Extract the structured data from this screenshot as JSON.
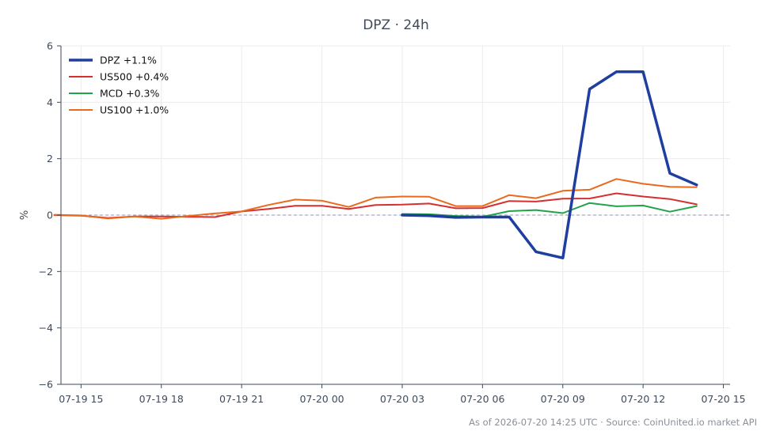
{
  "chart_data": {
    "type": "line",
    "title": "DPZ · 24h",
    "xlabel": "",
    "ylabel": "%",
    "ylim": [
      -6,
      6
    ],
    "xlim": [
      "2026-07-19 14:15",
      "2026-07-20 15:15"
    ],
    "yticks": [
      -6,
      -4,
      -2,
      0,
      2,
      4,
      6
    ],
    "xticks": [
      "2026-07-19 15:00",
      "2026-07-19 18:00",
      "2026-07-19 21:00",
      "2026-07-20 00:00",
      "2026-07-20 03:00",
      "2026-07-20 06:00",
      "2026-07-20 09:00",
      "2026-07-20 12:00",
      "2026-07-20 15:00"
    ],
    "xtick_labels": [
      "07-19 15",
      "07-19 18",
      "07-19 21",
      "07-20 00",
      "07-20 03",
      "07-20 06",
      "07-20 09",
      "07-20 12",
      "07-20 15"
    ],
    "grid": true,
    "legend_position": "top-left",
    "reference_line": 0,
    "series": [
      {
        "name": "DPZ +1.1%",
        "color": "#1f3fa0",
        "emphasis": true,
        "x": [
          "2026-07-20 03:00",
          "2026-07-20 04:00",
          "2026-07-20 05:00",
          "2026-07-20 06:00",
          "2026-07-20 07:00",
          "2026-07-20 08:00",
          "2026-07-20 09:00",
          "2026-07-20 10:00",
          "2026-07-20 11:00",
          "2026-07-20 12:00",
          "2026-07-20 13:00",
          "2026-07-20 14:00"
        ],
        "values": [
          0.0,
          -0.02,
          -0.08,
          -0.07,
          -0.07,
          -1.3,
          -1.52,
          4.47,
          5.08,
          5.08,
          1.48,
          1.07
        ]
      },
      {
        "name": "US500 +0.4%",
        "color": "#d62f2f",
        "emphasis": false,
        "x": [
          "2026-07-19 14:00",
          "2026-07-19 15:00",
          "2026-07-19 16:00",
          "2026-07-19 17:00",
          "2026-07-19 18:00",
          "2026-07-19 19:00",
          "2026-07-19 20:00",
          "2026-07-19 21:00",
          "2026-07-19 22:00",
          "2026-07-19 23:00",
          "2026-07-20 00:00",
          "2026-07-20 01:00",
          "2026-07-20 02:00",
          "2026-07-20 03:00",
          "2026-07-20 04:00",
          "2026-07-20 05:00",
          "2026-07-20 06:00",
          "2026-07-20 07:00",
          "2026-07-20 08:00",
          "2026-07-20 09:00",
          "2026-07-20 10:00",
          "2026-07-20 11:00",
          "2026-07-20 12:00",
          "2026-07-20 13:00",
          "2026-07-20 14:00"
        ],
        "values": [
          0.0,
          -0.02,
          -0.1,
          -0.05,
          -0.05,
          -0.06,
          -0.07,
          0.13,
          0.22,
          0.33,
          0.33,
          0.22,
          0.36,
          0.37,
          0.41,
          0.24,
          0.25,
          0.5,
          0.48,
          0.58,
          0.59,
          0.77,
          0.66,
          0.57,
          0.38
        ]
      },
      {
        "name": "MCD +0.3%",
        "color": "#22a34a",
        "emphasis": false,
        "x": [
          "2026-07-20 03:00",
          "2026-07-20 04:00",
          "2026-07-20 05:00",
          "2026-07-20 06:00",
          "2026-07-20 07:00",
          "2026-07-20 08:00",
          "2026-07-20 09:00",
          "2026-07-20 10:00",
          "2026-07-20 11:00",
          "2026-07-20 12:00",
          "2026-07-20 13:00",
          "2026-07-20 14:00"
        ],
        "values": [
          0.04,
          0.03,
          -0.03,
          -0.06,
          0.14,
          0.18,
          0.07,
          0.43,
          0.31,
          0.34,
          0.12,
          0.32
        ]
      },
      {
        "name": "US100 +1.0%",
        "color": "#ea6a1c",
        "emphasis": false,
        "x": [
          "2026-07-19 14:00",
          "2026-07-19 15:00",
          "2026-07-19 16:00",
          "2026-07-19 17:00",
          "2026-07-19 18:00",
          "2026-07-19 19:00",
          "2026-07-19 20:00",
          "2026-07-19 21:00",
          "2026-07-19 22:00",
          "2026-07-19 23:00",
          "2026-07-20 00:00",
          "2026-07-20 01:00",
          "2026-07-20 02:00",
          "2026-07-20 03:00",
          "2026-07-20 04:00",
          "2026-07-20 05:00",
          "2026-07-20 06:00",
          "2026-07-20 07:00",
          "2026-07-20 08:00",
          "2026-07-20 09:00",
          "2026-07-20 10:00",
          "2026-07-20 11:00",
          "2026-07-20 12:00",
          "2026-07-20 13:00",
          "2026-07-20 14:00"
        ],
        "values": [
          0.01,
          -0.01,
          -0.12,
          -0.05,
          -0.13,
          -0.03,
          0.06,
          0.13,
          0.36,
          0.55,
          0.51,
          0.29,
          0.62,
          0.66,
          0.65,
          0.32,
          0.32,
          0.71,
          0.6,
          0.86,
          0.9,
          1.28,
          1.11,
          1.0,
          0.99
        ]
      }
    ]
  },
  "footer": "As of 2026-07-20 14:25 UTC · Source: CoinUnited.io market API"
}
